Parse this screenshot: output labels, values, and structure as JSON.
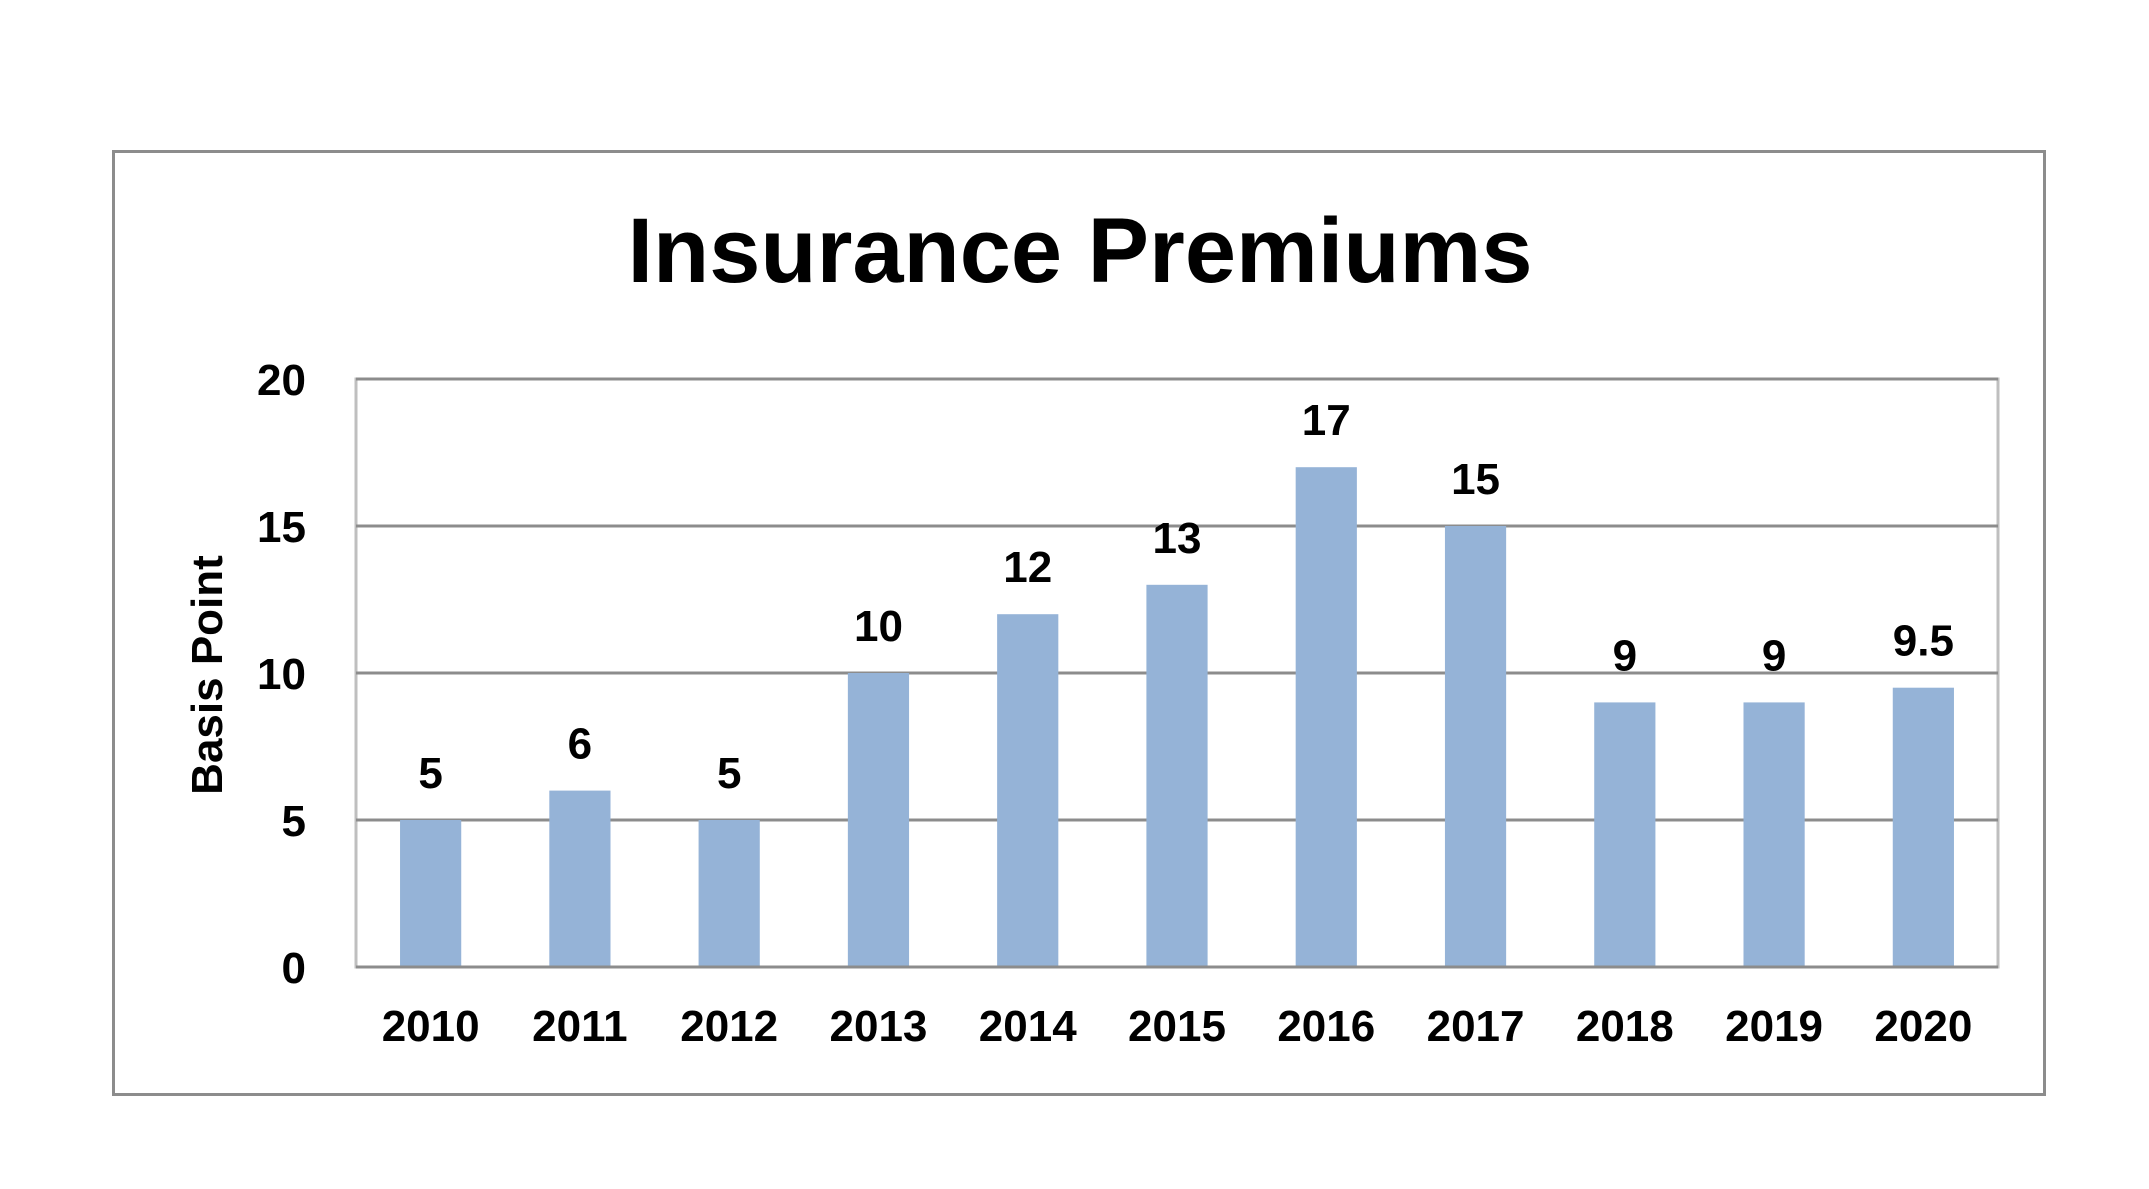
{
  "chart_data": {
    "type": "bar",
    "title": "Insurance Premiums",
    "xlabel": "",
    "ylabel": "Basis Point",
    "categories": [
      "2010",
      "2011",
      "2012",
      "2013",
      "2014",
      "2015",
      "2016",
      "2017",
      "2018",
      "2019",
      "2020"
    ],
    "values": [
      5,
      6,
      5,
      10,
      12,
      13,
      17,
      15,
      9,
      9,
      9.5
    ],
    "data_labels": [
      "5",
      "6",
      "5",
      "10",
      "12",
      "13",
      "17",
      "15",
      "9",
      "9",
      "9.5"
    ],
    "ylim": [
      0,
      20
    ],
    "yticks": [
      0,
      5,
      10,
      15,
      20
    ],
    "grid": true,
    "legend": "none",
    "bar_color": "#95b3d7",
    "grid_color": "#8c8c8c",
    "plot_border_color": "#bfbfbf"
  }
}
